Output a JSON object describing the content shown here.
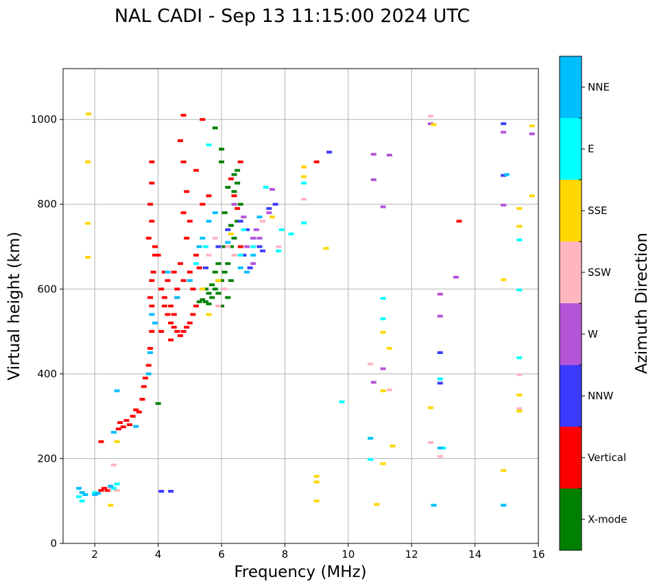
{
  "chart_data": {
    "type": "scatter",
    "title": "NAL CADI - Sep 13 11:15:00 2024 UTC",
    "xlabel": "Frequency (MHz)",
    "ylabel": "Virtual height (km)",
    "xlim": [
      1,
      16
    ],
    "ylim": [
      0,
      1120
    ],
    "xticks": [
      2,
      4,
      6,
      8,
      10,
      12,
      14,
      16
    ],
    "yticks": [
      0,
      200,
      400,
      600,
      800,
      1000
    ],
    "grid": true,
    "colorbar": {
      "label": "Azimuth Direction",
      "categories": [
        {
          "name": "X-mode",
          "color": "#008000"
        },
        {
          "name": "Vertical",
          "color": "#ff0000"
        },
        {
          "name": "NNW",
          "color": "#3b3bff"
        },
        {
          "name": "W",
          "color": "#b455d8"
        },
        {
          "name": "SSW",
          "color": "#ffb6c1"
        },
        {
          "name": "SSE",
          "color": "#ffd700"
        },
        {
          "name": "E",
          "color": "#00ffff"
        },
        {
          "name": "NNE",
          "color": "#00bfff"
        }
      ]
    },
    "series": [
      {
        "name": "X-mode",
        "points": [
          [
            5.4,
            575
          ],
          [
            5.5,
            570
          ],
          [
            5.6,
            565
          ],
          [
            5.7,
            580
          ],
          [
            5.8,
            600
          ],
          [
            5.9,
            590
          ],
          [
            6.0,
            620
          ],
          [
            6.1,
            640
          ],
          [
            6.2,
            660
          ],
          [
            6.3,
            700
          ],
          [
            6.4,
            720
          ],
          [
            6.5,
            760
          ],
          [
            6.6,
            800
          ],
          [
            6.2,
            840
          ],
          [
            6.4,
            870
          ],
          [
            6.5,
            880
          ],
          [
            6.0,
            900
          ],
          [
            6.0,
            930
          ],
          [
            5.9,
            620
          ],
          [
            5.8,
            640
          ],
          [
            5.6,
            590
          ],
          [
            5.3,
            570
          ],
          [
            5.5,
            600
          ],
          [
            6.1,
            700
          ],
          [
            6.3,
            750
          ],
          [
            6.0,
            560
          ],
          [
            6.2,
            580
          ],
          [
            6.4,
            830
          ],
          [
            6.5,
            850
          ],
          [
            6.1,
            780
          ],
          [
            4.0,
            330
          ],
          [
            5.8,
            980
          ],
          [
            5.9,
            660
          ],
          [
            6.3,
            620
          ],
          [
            5.7,
            610
          ]
        ]
      },
      {
        "name": "Vertical",
        "points": [
          [
            2.2,
            125
          ],
          [
            2.3,
            130
          ],
          [
            2.4,
            125
          ],
          [
            2.2,
            240
          ],
          [
            2.75,
            270
          ],
          [
            2.8,
            285
          ],
          [
            2.9,
            275
          ],
          [
            3.0,
            290
          ],
          [
            3.1,
            280
          ],
          [
            3.2,
            300
          ],
          [
            3.3,
            315
          ],
          [
            3.4,
            310
          ],
          [
            3.5,
            340
          ],
          [
            3.55,
            370
          ],
          [
            3.6,
            390
          ],
          [
            3.7,
            420
          ],
          [
            3.75,
            460
          ],
          [
            3.8,
            500
          ],
          [
            3.8,
            560
          ],
          [
            3.75,
            580
          ],
          [
            3.8,
            620
          ],
          [
            3.85,
            640
          ],
          [
            3.9,
            680
          ],
          [
            3.7,
            720
          ],
          [
            3.8,
            760
          ],
          [
            3.75,
            800
          ],
          [
            3.8,
            850
          ],
          [
            3.8,
            900
          ],
          [
            3.9,
            700
          ],
          [
            4.0,
            680
          ],
          [
            4.1,
            600
          ],
          [
            4.2,
            560
          ],
          [
            4.3,
            540
          ],
          [
            4.4,
            520
          ],
          [
            4.5,
            510
          ],
          [
            4.6,
            500
          ],
          [
            4.7,
            490
          ],
          [
            4.8,
            500
          ],
          [
            4.9,
            510
          ],
          [
            5.0,
            520
          ],
          [
            5.1,
            540
          ],
          [
            5.2,
            560
          ],
          [
            4.4,
            560
          ],
          [
            4.6,
            580
          ],
          [
            4.8,
            620
          ],
          [
            5.0,
            640
          ],
          [
            5.2,
            680
          ],
          [
            4.9,
            720
          ],
          [
            4.8,
            780
          ],
          [
            4.9,
            830
          ],
          [
            4.8,
            900
          ],
          [
            4.7,
            950
          ],
          [
            4.8,
            1010
          ],
          [
            5.4,
            1000
          ],
          [
            5.2,
            880
          ],
          [
            5.4,
            800
          ],
          [
            5.0,
            760
          ],
          [
            4.7,
            660
          ],
          [
            4.3,
            620
          ],
          [
            4.2,
            580
          ],
          [
            4.5,
            640
          ],
          [
            5.1,
            600
          ],
          [
            6.6,
            900
          ],
          [
            6.4,
            820
          ],
          [
            6.5,
            790
          ],
          [
            9.0,
            900
          ],
          [
            13.5,
            760
          ],
          [
            4.1,
            500
          ],
          [
            4.5,
            540
          ],
          [
            5.3,
            650
          ],
          [
            4.6,
            600
          ],
          [
            4.2,
            640
          ],
          [
            5.6,
            820
          ],
          [
            6.3,
            860
          ],
          [
            6.6,
            700
          ],
          [
            4.4,
            480
          ]
        ]
      },
      {
        "name": "NNW",
        "points": [
          [
            4.1,
            123
          ],
          [
            4.4,
            123
          ],
          [
            6.6,
            760
          ],
          [
            6.8,
            740
          ],
          [
            7.0,
            720
          ],
          [
            7.2,
            700
          ],
          [
            7.3,
            690
          ],
          [
            7.5,
            790
          ],
          [
            6.9,
            650
          ],
          [
            9.4,
            923
          ],
          [
            12.9,
            450
          ],
          [
            12.9,
            378
          ],
          [
            14.9,
            990
          ],
          [
            14.9,
            868
          ],
          [
            5.5,
            650
          ],
          [
            5.9,
            700
          ],
          [
            6.2,
            740
          ],
          [
            7.7,
            800
          ],
          [
            6.7,
            680
          ]
        ]
      },
      {
        "name": "W",
        "points": [
          [
            6.6,
            680
          ],
          [
            6.8,
            700
          ],
          [
            7.0,
            720
          ],
          [
            7.1,
            740
          ],
          [
            7.3,
            760
          ],
          [
            7.5,
            780
          ],
          [
            7.6,
            835
          ],
          [
            7.0,
            660
          ],
          [
            10.8,
            918
          ],
          [
            11.3,
            916
          ],
          [
            10.8,
            858
          ],
          [
            11.1,
            794
          ],
          [
            10.8,
            380
          ],
          [
            11.1,
            412
          ],
          [
            12.9,
            588
          ],
          [
            12.9,
            536
          ],
          [
            13.4,
            628
          ],
          [
            14.9,
            970
          ],
          [
            14.9,
            798
          ],
          [
            15.8,
            966
          ],
          [
            12.6,
            990
          ],
          [
            6.4,
            800
          ],
          [
            6.7,
            770
          ],
          [
            7.2,
            720
          ]
        ]
      },
      {
        "name": "SSW",
        "points": [
          [
            2.5,
            130
          ],
          [
            2.6,
            185
          ],
          [
            2.7,
            125
          ],
          [
            5.6,
            680
          ],
          [
            5.8,
            720
          ],
          [
            6.2,
            700
          ],
          [
            6.4,
            680
          ],
          [
            7.3,
            760
          ],
          [
            7.8,
            700
          ],
          [
            8.6,
            812
          ],
          [
            10.7,
            423
          ],
          [
            11.3,
            362
          ],
          [
            12.6,
            238
          ],
          [
            12.9,
            205
          ],
          [
            15.4,
            398
          ],
          [
            15.4,
            318
          ],
          [
            12.6,
            1008
          ],
          [
            5.9,
            560
          ],
          [
            6.1,
            600
          ]
        ]
      },
      {
        "name": "SSE",
        "points": [
          [
            1.8,
            1013
          ],
          [
            1.78,
            900
          ],
          [
            1.78,
            755
          ],
          [
            1.78,
            675
          ],
          [
            2.7,
            240
          ],
          [
            2.5,
            90
          ],
          [
            5.6,
            540
          ],
          [
            5.4,
            600
          ],
          [
            5.9,
            620
          ],
          [
            8.6,
            888
          ],
          [
            8.6,
            865
          ],
          [
            9.0,
            158
          ],
          [
            9.0,
            145
          ],
          [
            9.0,
            100
          ],
          [
            9.3,
            696
          ],
          [
            10.9,
            92
          ],
          [
            11.1,
            188
          ],
          [
            11.1,
            360
          ],
          [
            11.1,
            498
          ],
          [
            11.3,
            460
          ],
          [
            11.4,
            230
          ],
          [
            12.6,
            320
          ],
          [
            12.7,
            988
          ],
          [
            14.9,
            172
          ],
          [
            14.9,
            622
          ],
          [
            15.4,
            790
          ],
          [
            15.4,
            748
          ],
          [
            15.4,
            350
          ],
          [
            15.4,
            312
          ],
          [
            15.8,
            985
          ],
          [
            15.8,
            820
          ],
          [
            6.3,
            730
          ],
          [
            7.6,
            770
          ]
        ]
      },
      {
        "name": "E",
        "points": [
          [
            1.5,
            110
          ],
          [
            1.6,
            100
          ],
          [
            2.0,
            120
          ],
          [
            2.6,
            130
          ],
          [
            2.7,
            140
          ],
          [
            5.2,
            660
          ],
          [
            5.5,
            700
          ],
          [
            6.6,
            680
          ],
          [
            7.0,
            700
          ],
          [
            7.4,
            840
          ],
          [
            7.8,
            690
          ],
          [
            7.9,
            740
          ],
          [
            8.2,
            730
          ],
          [
            8.6,
            850
          ],
          [
            8.6,
            756
          ],
          [
            9.8,
            334
          ],
          [
            10.7,
            198
          ],
          [
            11.1,
            578
          ],
          [
            11.1,
            530
          ],
          [
            13.0,
            225
          ],
          [
            14.9,
            90
          ],
          [
            15.4,
            716
          ],
          [
            15.4,
            598
          ],
          [
            15.4,
            438
          ],
          [
            12.9,
            388
          ],
          [
            5.6,
            940
          ],
          [
            6.7,
            740
          ]
        ]
      },
      {
        "name": "NNE",
        "points": [
          [
            1.5,
            130
          ],
          [
            1.6,
            120
          ],
          [
            1.7,
            115
          ],
          [
            2.0,
            115
          ],
          [
            2.1,
            118
          ],
          [
            2.5,
            135
          ],
          [
            2.6,
            262
          ],
          [
            2.7,
            360
          ],
          [
            3.3,
            276
          ],
          [
            3.7,
            400
          ],
          [
            3.75,
            450
          ],
          [
            3.8,
            540
          ],
          [
            3.9,
            520
          ],
          [
            4.3,
            640
          ],
          [
            4.6,
            580
          ],
          [
            5.0,
            620
          ],
          [
            5.4,
            720
          ],
          [
            5.6,
            760
          ],
          [
            6.6,
            650
          ],
          [
            6.8,
            640
          ],
          [
            7.0,
            680
          ],
          [
            7.2,
            770
          ],
          [
            10.7,
            248
          ],
          [
            12.7,
            90
          ],
          [
            14.9,
            90
          ],
          [
            15.0,
            870
          ],
          [
            12.9,
            225
          ],
          [
            5.3,
            700
          ],
          [
            5.8,
            780
          ],
          [
            6.2,
            710
          ]
        ]
      }
    ]
  }
}
